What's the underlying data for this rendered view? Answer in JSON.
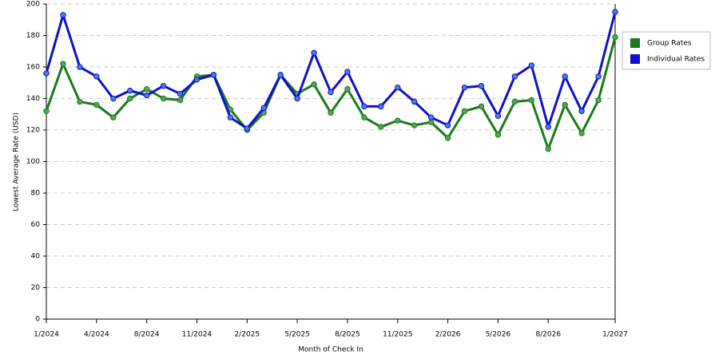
{
  "chart_data": {
    "type": "line",
    "x_label": "Month of Check In",
    "y_label": "Lowest Average Rate (USD)",
    "categories": [
      "1/2024",
      null,
      null,
      "4/2024",
      null,
      null,
      "8/2024",
      null,
      null,
      "11/2024",
      null,
      null,
      "2/2025",
      null,
      null,
      "5/2025",
      null,
      null,
      "8/2025",
      null,
      null,
      "11/2025",
      null,
      null,
      "2/2026",
      null,
      null,
      "5/2026",
      null,
      null,
      "8/2026",
      null,
      null,
      null,
      "1/2027"
    ],
    "series": [
      {
        "name": "Group Rates",
        "color": "#1a7a1a",
        "marker": "#5aa05a",
        "values": [
          132,
          162,
          138,
          136,
          128,
          140,
          146,
          140,
          139,
          154,
          155,
          133,
          120,
          131,
          155,
          143,
          149,
          131,
          146,
          128,
          122,
          126,
          123,
          125,
          115,
          132,
          135,
          117,
          138,
          139,
          108,
          136,
          118,
          139,
          179
        ]
      },
      {
        "name": "Individual Rates",
        "color": "#1010cc",
        "marker": "#4a7fe0",
        "values": [
          156,
          193,
          160,
          154,
          140,
          145,
          142,
          148,
          143,
          152,
          155,
          128,
          121,
          134,
          155,
          140,
          169,
          144,
          157,
          135,
          135,
          147,
          138,
          128,
          123,
          147,
          148,
          129,
          154,
          161,
          122,
          154,
          132,
          154,
          195
        ]
      }
    ],
    "ylim": [
      0,
      200
    ],
    "yticks": [
      0,
      20,
      40,
      60,
      80,
      100,
      120,
      140,
      160,
      180,
      200
    ],
    "grid": true,
    "legend": "right"
  }
}
